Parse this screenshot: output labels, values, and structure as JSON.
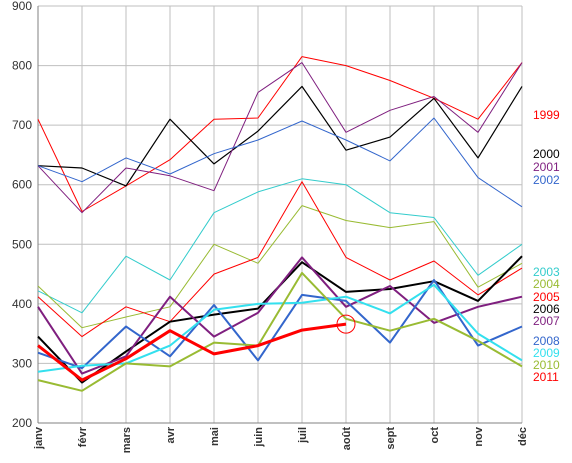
{
  "chart_data": {
    "type": "line",
    "categories": [
      "janv",
      "févr",
      "mars",
      "avr",
      "mai",
      "juin",
      "juil",
      "août",
      "sept",
      "oct",
      "nov",
      "déc"
    ],
    "ylim": [
      200,
      900
    ],
    "yticks": [
      200,
      300,
      400,
      500,
      600,
      700,
      800,
      900
    ],
    "grid": true,
    "legend_placement": "right",
    "series": [
      {
        "name": "1999",
        "color": "#ff0000",
        "width": 1,
        "values": [
          710,
          555,
          598,
          642,
          710,
          712,
          815,
          800,
          775,
          745,
          710,
          805
        ]
      },
      {
        "name": "2000",
        "color": "#000000",
        "width": 1.2,
        "values": [
          632,
          628,
          598,
          710,
          635,
          690,
          765,
          658,
          680,
          745,
          645,
          765
        ]
      },
      {
        "name": "2001",
        "color": "#7f1f7f",
        "width": 1,
        "values": [
          632,
          553,
          628,
          615,
          590,
          755,
          805,
          688,
          725,
          748,
          688,
          805
        ]
      },
      {
        "name": "2002",
        "color": "#3366cc",
        "width": 1,
        "values": [
          632,
          605,
          645,
          618,
          652,
          675,
          707,
          675,
          640,
          712,
          612,
          563
        ]
      },
      {
        "name": "2003",
        "color": "#33cccc",
        "width": 1,
        "values": [
          422,
          385,
          480,
          440,
          553,
          588,
          610,
          600,
          553,
          545,
          448,
          500
        ]
      },
      {
        "name": "2004",
        "color": "#99bb33",
        "width": 1,
        "values": [
          430,
          360,
          378,
          395,
          500,
          468,
          565,
          540,
          528,
          538,
          428,
          468
        ]
      },
      {
        "name": "2005",
        "color": "#ff0000",
        "width": 1,
        "values": [
          412,
          345,
          395,
          370,
          450,
          478,
          605,
          478,
          440,
          472,
          415,
          460
        ]
      },
      {
        "name": "2006",
        "color": "#000000",
        "width": 2,
        "values": [
          345,
          268,
          320,
          370,
          382,
          392,
          470,
          420,
          425,
          438,
          405,
          480
        ]
      },
      {
        "name": "2007",
        "color": "#7f1f7f",
        "width": 2,
        "values": [
          395,
          283,
          312,
          412,
          345,
          385,
          478,
          395,
          430,
          368,
          395,
          412
        ]
      },
      {
        "name": "2008",
        "color": "#3366cc",
        "width": 2,
        "values": [
          318,
          292,
          362,
          312,
          398,
          305,
          415,
          405,
          335,
          440,
          330,
          362
        ]
      },
      {
        "name": "2009",
        "color": "#33e0ee",
        "width": 2,
        "values": [
          286,
          296,
          300,
          330,
          390,
          400,
          402,
          412,
          384,
          432,
          350,
          305
        ]
      },
      {
        "name": "2010",
        "color": "#99bb33",
        "width": 2,
        "values": [
          272,
          254,
          300,
          295,
          335,
          330,
          452,
          375,
          355,
          375,
          338,
          295
        ]
      },
      {
        "name": "2011",
        "color": "#ff0000",
        "width": 3,
        "values": [
          330,
          272,
          308,
          355,
          316,
          330,
          356,
          366,
          null,
          null,
          null,
          null
        ]
      }
    ],
    "annotation": {
      "type": "circle",
      "category_index": 7,
      "value": 366,
      "color": "#ff0000"
    }
  }
}
